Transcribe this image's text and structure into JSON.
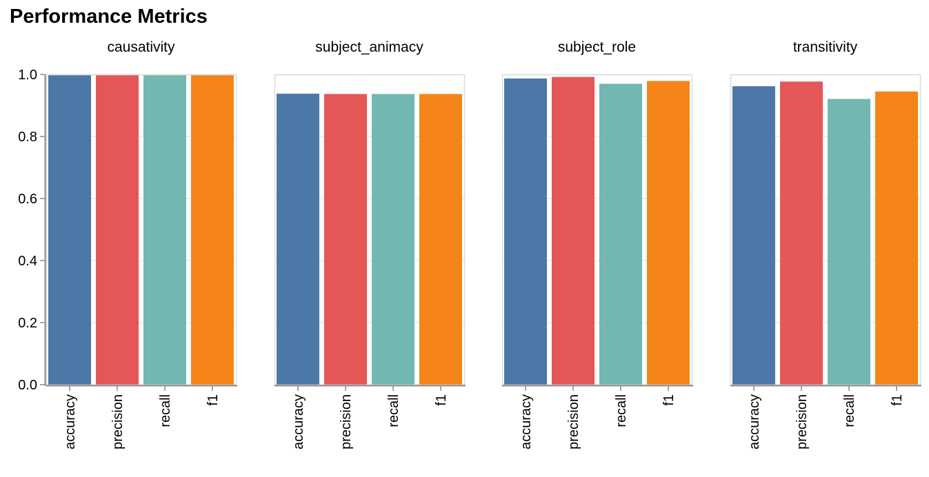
{
  "chart_data": {
    "type": "bar",
    "title": "Performance Metrics",
    "categories": [
      "accuracy",
      "precision",
      "recall",
      "f1"
    ],
    "colors": [
      "#4c78a8",
      "#e45756",
      "#72b7b2",
      "#f58518"
    ],
    "ylim": [
      0,
      1
    ],
    "y_ticks": [
      "0.0",
      "0.2",
      "0.4",
      "0.6",
      "0.8",
      "1.0"
    ],
    "grid": true,
    "facets": [
      {
        "name": "causativity",
        "values": [
          1.0,
          1.0,
          1.0,
          1.0
        ]
      },
      {
        "name": "subject_animacy",
        "values": [
          0.938,
          0.937,
          0.937,
          0.937
        ]
      },
      {
        "name": "subject_role",
        "values": [
          0.987,
          0.992,
          0.97,
          0.979
        ]
      },
      {
        "name": "transitivity",
        "values": [
          0.962,
          0.977,
          0.921,
          0.945
        ]
      }
    ]
  }
}
